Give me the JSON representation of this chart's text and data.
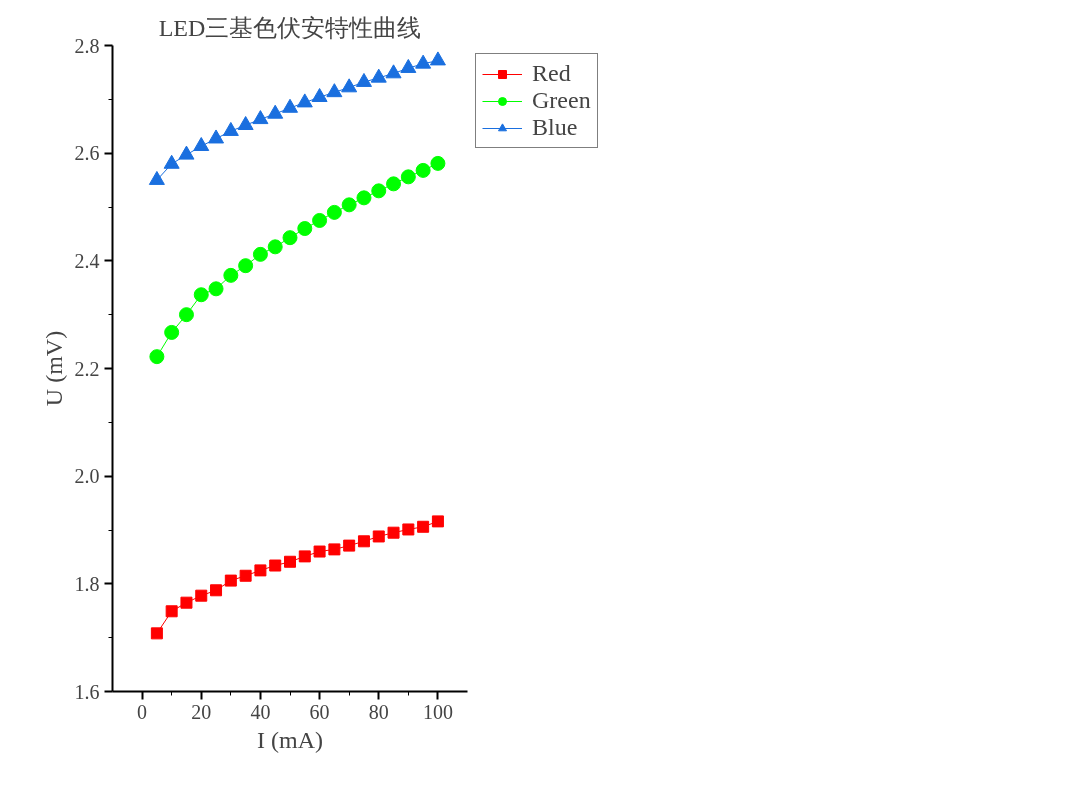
{
  "chart_data": {
    "type": "line",
    "title": "LED三基色伏安特性曲线",
    "xlabel": "I (mA)",
    "ylabel": "U (mV)",
    "x": [
      5,
      10,
      15,
      20,
      25,
      30,
      35,
      40,
      45,
      50,
      55,
      60,
      65,
      70,
      75,
      80,
      85,
      90,
      95,
      100
    ],
    "series": [
      {
        "name": "Red",
        "color": "#ff0000",
        "marker": "square",
        "values": [
          1.708,
          1.749,
          1.765,
          1.778,
          1.788,
          1.806,
          1.815,
          1.825,
          1.834,
          1.841,
          1.851,
          1.86,
          1.864,
          1.871,
          1.879,
          1.888,
          1.895,
          1.901,
          1.906,
          1.916
        ]
      },
      {
        "name": "Green",
        "color": "#00ff00",
        "marker": "circle",
        "values": [
          2.222,
          2.267,
          2.3,
          2.337,
          2.348,
          2.373,
          2.391,
          2.412,
          2.426,
          2.443,
          2.46,
          2.475,
          2.49,
          2.504,
          2.517,
          2.53,
          2.543,
          2.556,
          2.568,
          2.581
        ]
      },
      {
        "name": "Blue",
        "color": "#1a6fdf",
        "marker": "triangle",
        "values": [
          2.55,
          2.58,
          2.597,
          2.613,
          2.627,
          2.641,
          2.652,
          2.663,
          2.673,
          2.684,
          2.694,
          2.704,
          2.713,
          2.722,
          2.732,
          2.74,
          2.748,
          2.758,
          2.766,
          2.772
        ]
      }
    ],
    "xlim": [
      -10,
      110
    ],
    "xticks": [
      0,
      20,
      40,
      60,
      80,
      100
    ],
    "ylim": [
      1.6,
      2.8
    ],
    "yticks": [
      {
        "value": 1.6,
        "label": "1.6"
      },
      {
        "value": 1.8,
        "label": "1.8"
      },
      {
        "value": 2.0,
        "label": "2.0"
      },
      {
        "value": 2.2,
        "label": "2.2"
      },
      {
        "value": 2.4,
        "label": "2.4"
      },
      {
        "value": 2.6,
        "label": "2.6"
      },
      {
        "value": 2.8,
        "label": "2.8"
      }
    ],
    "grid": false,
    "legend": "top right",
    "line_style": "solid"
  }
}
